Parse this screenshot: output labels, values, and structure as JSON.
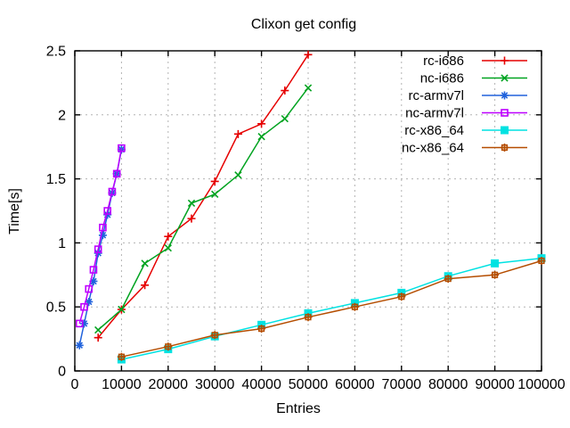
{
  "chart_data": {
    "type": "line",
    "title": "Clixon get config",
    "xlabel": "Entries",
    "ylabel": "Time[s]",
    "xlim": [
      0,
      100000
    ],
    "ylim": [
      0,
      2.5
    ],
    "xticks": [
      0,
      10000,
      20000,
      30000,
      40000,
      50000,
      60000,
      70000,
      80000,
      90000,
      100000
    ],
    "xtick_labels": [
      "0",
      "10000",
      "20000",
      "30000",
      "40000",
      "50000",
      "60000",
      "70000",
      "80000",
      "90000",
      "100000"
    ],
    "yticks": [
      0,
      0.5,
      1,
      1.5,
      2,
      2.5
    ],
    "ytick_labels": [
      "0",
      "0.5",
      "1",
      "1.5",
      "2",
      "2.5"
    ],
    "grid": true,
    "legend_position": "top-right-inside",
    "background_color": "#ffffff",
    "axis_color": "#000000",
    "grid_color": "#b3b3b3",
    "series": [
      {
        "name": "rc-i686",
        "color": "#e60000",
        "marker": "plus",
        "points": [
          [
            5000,
            0.26
          ],
          [
            10000,
            0.48
          ],
          [
            15000,
            0.67
          ],
          [
            20000,
            1.05
          ],
          [
            25000,
            1.19
          ],
          [
            30000,
            1.48
          ],
          [
            35000,
            1.85
          ],
          [
            40000,
            1.93
          ],
          [
            45000,
            2.19
          ],
          [
            50000,
            2.47
          ]
        ]
      },
      {
        "name": "nc-i686",
        "color": "#00a320",
        "marker": "cross",
        "points": [
          [
            5000,
            0.32
          ],
          [
            10000,
            0.48
          ],
          [
            15000,
            0.84
          ],
          [
            20000,
            0.96
          ],
          [
            25000,
            1.31
          ],
          [
            30000,
            1.38
          ],
          [
            35000,
            1.53
          ],
          [
            40000,
            1.83
          ],
          [
            45000,
            1.97
          ],
          [
            50000,
            2.21
          ]
        ]
      },
      {
        "name": "rc-armv7l",
        "color": "#2062dc",
        "marker": "asterisk",
        "points": [
          [
            1000,
            0.2
          ],
          [
            2000,
            0.37
          ],
          [
            3000,
            0.54
          ],
          [
            4000,
            0.7
          ],
          [
            5000,
            0.92
          ],
          [
            6000,
            1.06
          ],
          [
            7000,
            1.22
          ],
          [
            8000,
            1.39
          ],
          [
            9000,
            1.54
          ],
          [
            10000,
            1.73
          ]
        ]
      },
      {
        "name": "nc-armv7l",
        "color": "#bd00ff",
        "marker": "square-open",
        "points": [
          [
            1000,
            0.37
          ],
          [
            2000,
            0.5
          ],
          [
            3000,
            0.64
          ],
          [
            4000,
            0.79
          ],
          [
            5000,
            0.95
          ],
          [
            6000,
            1.12
          ],
          [
            7000,
            1.25
          ],
          [
            8000,
            1.4
          ],
          [
            9000,
            1.54
          ],
          [
            10000,
            1.74
          ]
        ]
      },
      {
        "name": "rc-x86_64",
        "color": "#00e2e2",
        "marker": "square-filled",
        "points": [
          [
            10000,
            0.09
          ],
          [
            20000,
            0.17
          ],
          [
            30000,
            0.27
          ],
          [
            40000,
            0.36
          ],
          [
            50000,
            0.45
          ],
          [
            60000,
            0.53
          ],
          [
            70000,
            0.61
          ],
          [
            80000,
            0.74
          ],
          [
            90000,
            0.84
          ],
          [
            100000,
            0.88
          ]
        ]
      },
      {
        "name": "nc-x86_64",
        "color": "#b54d00",
        "marker": "square-plus",
        "points": [
          [
            10000,
            0.11
          ],
          [
            20000,
            0.19
          ],
          [
            30000,
            0.28
          ],
          [
            40000,
            0.33
          ],
          [
            50000,
            0.42
          ],
          [
            60000,
            0.5
          ],
          [
            70000,
            0.58
          ],
          [
            80000,
            0.72
          ],
          [
            90000,
            0.75
          ],
          [
            100000,
            0.86
          ]
        ]
      }
    ]
  }
}
